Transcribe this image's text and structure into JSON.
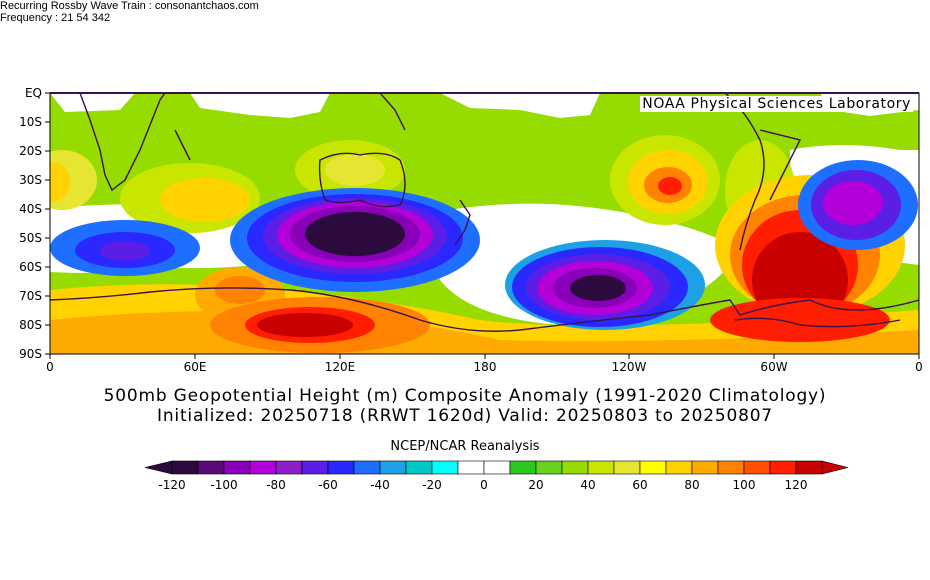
{
  "header": {
    "left": "Recurring Rossby Wave Train : consonantchaos.com",
    "right": "Frequency : 21 54 342",
    "lab": "NOAA Physical Sciences Laboratory"
  },
  "axes": {
    "lat_labels": [
      "EQ",
      "10S",
      "20S",
      "30S",
      "40S",
      "50S",
      "60S",
      "70S",
      "80S",
      "90S"
    ],
    "lon_labels": [
      "0",
      "60E",
      "120E",
      "180",
      "120W",
      "60W",
      "0"
    ]
  },
  "title": {
    "line1": "500mb Geopotential Height (m) Composite Anomaly (1991-2020 Climatology)",
    "line2": "Initialized: 20250718 (RRWT 1620d) Valid: 20250803 to 20250807"
  },
  "colorbar": {
    "title": "NCEP/NCAR Reanalysis",
    "labels": [
      "-120",
      "-100",
      "-80",
      "-60",
      "-40",
      "-20",
      "0",
      "20",
      "40",
      "60",
      "80",
      "100",
      "120"
    ],
    "colors": [
      "#2b0a3d",
      "#5a0a78",
      "#8a00b8",
      "#b400d9",
      "#8f1ec8",
      "#5a1ee6",
      "#2828ff",
      "#1e6eff",
      "#1ea0e6",
      "#00c8c8",
      "#00ffff",
      "#ffffff",
      "#ffffff",
      "#2cc81e",
      "#64d21e",
      "#96dc00",
      "#c8e600",
      "#e6e632",
      "#ffff00",
      "#ffd200",
      "#ffaa00",
      "#ff8200",
      "#ff5000",
      "#ff1e00",
      "#c80000"
    ]
  },
  "map": {
    "region": "0-90S, 0-360",
    "anomaly_centers": [
      {
        "name": "south-indian-low",
        "lon": 120,
        "lat": -48,
        "value": -120
      },
      {
        "name": "south-pacific-low",
        "lon": -115,
        "lat": -67,
        "value": -120
      },
      {
        "name": "south-atlantic-low",
        "lon": 38,
        "lat": -55,
        "value": -60
      },
      {
        "name": "southwest-atlantic-low",
        "lon": -30,
        "lat": -37,
        "value": -80
      },
      {
        "name": "drake-passage-high",
        "lon": -52,
        "lat": -63,
        "value": 120
      },
      {
        "name": "antarctic-high",
        "lon": 105,
        "lat": -81,
        "value": 120
      },
      {
        "name": "subtropical-pacific-high",
        "lon": -100,
        "lat": -31,
        "value": 80
      }
    ]
  }
}
